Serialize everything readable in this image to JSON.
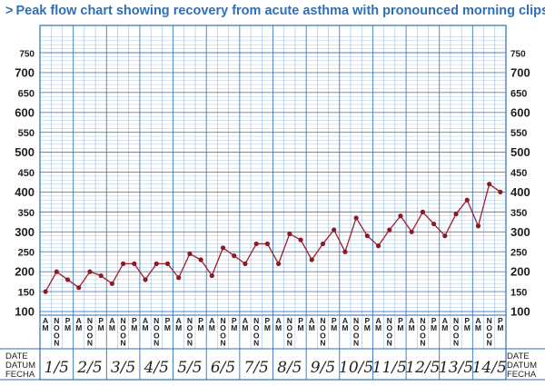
{
  "title": "Peak flow chart showing recovery from acute asthma with pronounced morning clips",
  "title_prefix": ">",
  "colors": {
    "title": "#2f6fb6",
    "grid": "#2f6fb6",
    "line": "#a0202c",
    "marker": "#8a1a24"
  },
  "date_header": [
    "DATE",
    "DATUM",
    "FECHA"
  ],
  "chart_data": {
    "type": "line",
    "ylim": [
      100,
      750
    ],
    "y_ticks": [
      100,
      150,
      200,
      250,
      300,
      350,
      400,
      450,
      500,
      550,
      600,
      650,
      700,
      750
    ],
    "y_tick_labels": [
      "100",
      "150",
      "200",
      "250",
      "300",
      "350",
      "400",
      "450",
      "500",
      "550",
      "600",
      "650",
      "700",
      "750"
    ],
    "period_labels": [
      "AM",
      "NOON",
      "PM"
    ],
    "dates": [
      "1/5",
      "2/5",
      "3/5",
      "4/5",
      "5/5",
      "6/5",
      "7/5",
      "8/5",
      "9/5",
      "10/5",
      "11/5",
      "12/5",
      "13/5",
      "14/5"
    ],
    "readings": [
      [
        150,
        200,
        180
      ],
      [
        160,
        200,
        190
      ],
      [
        170,
        220,
        220
      ],
      [
        180,
        220,
        220
      ],
      [
        185,
        245,
        230
      ],
      [
        190,
        260,
        240
      ],
      [
        220,
        270,
        270
      ],
      [
        220,
        295,
        280
      ],
      [
        230,
        270,
        305
      ],
      [
        250,
        335,
        290
      ],
      [
        265,
        305,
        340
      ],
      [
        300,
        350,
        320
      ],
      [
        290,
        345,
        380
      ],
      [
        315,
        420,
        400
      ]
    ]
  }
}
